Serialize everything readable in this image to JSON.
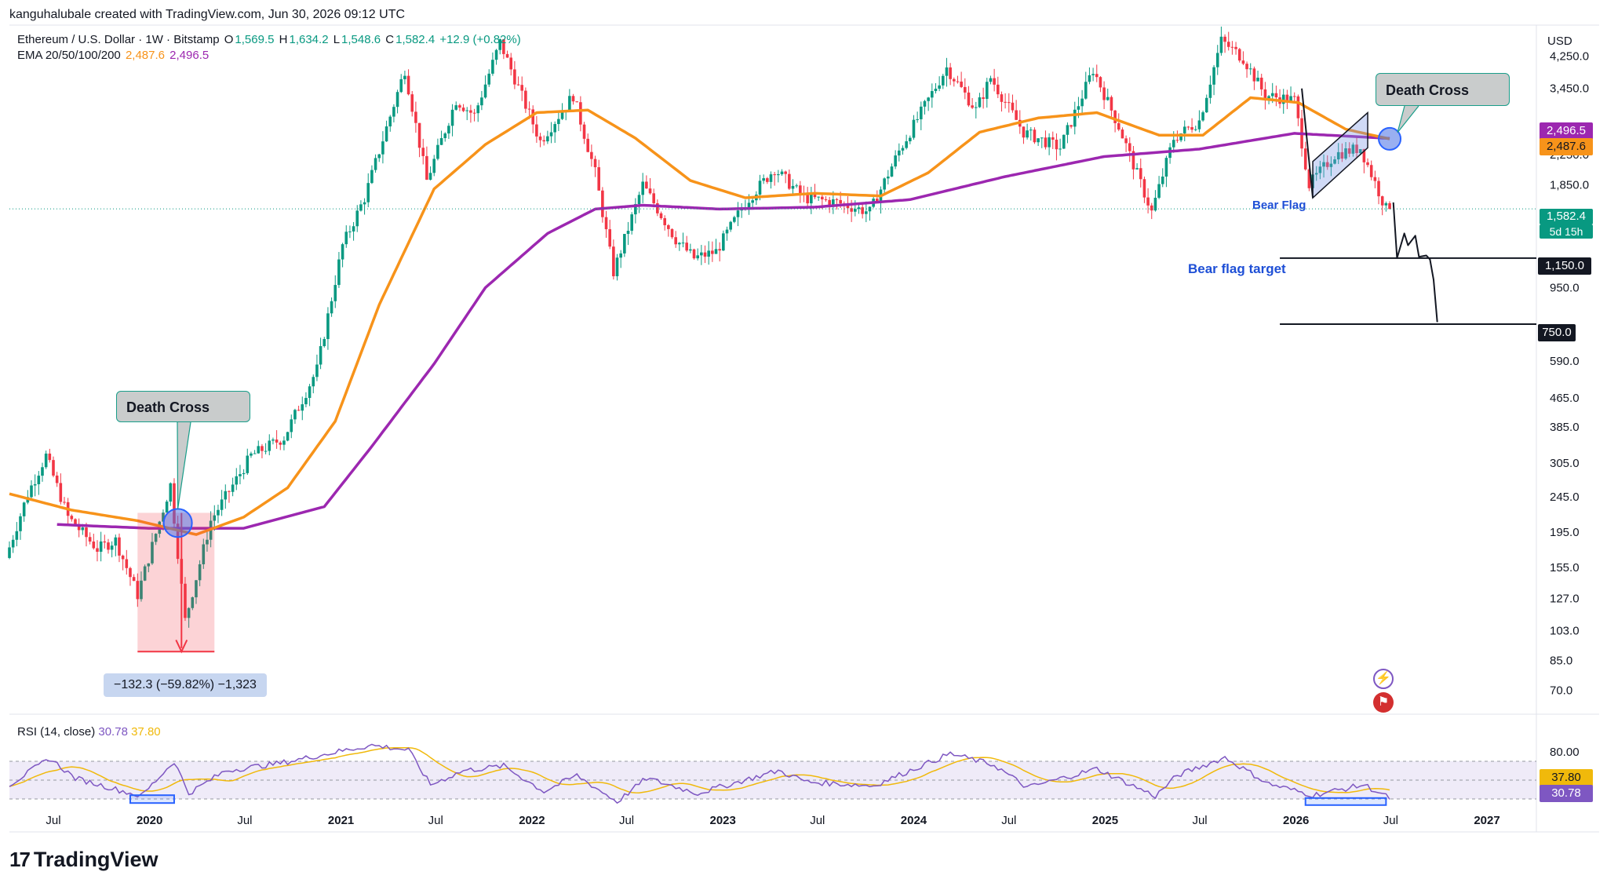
{
  "attribution": "kanguhalubale created with TradingView.com, Jun 30, 2026 09:12 UTC",
  "legend": {
    "symbol": "Ethereum / U.S. Dollar · 1W · Bitstamp",
    "open_label": "O",
    "open": "1,569.5",
    "high_label": "H",
    "high": "1,634.2",
    "low_label": "L",
    "low": "1,548.6",
    "close_label": "C",
    "close": "1,582.4",
    "change": "+12.9 (+0.82%)",
    "ema_label": "EMA 20/50/100/200",
    "ema_50": "2,487.6",
    "ema_200": "2,496.5"
  },
  "rsi_legend": {
    "label": "RSI (14, close)",
    "rsi": "30.78",
    "ma": "37.80"
  },
  "currency": "USD",
  "price_axis": [
    {
      "v": 4250,
      "t": "4,250.0"
    },
    {
      "v": 3450,
      "t": "3,450.0"
    },
    {
      "v": 2250,
      "t": "2,250.0"
    },
    {
      "v": 1850,
      "t": "1,850.0"
    },
    {
      "v": 950,
      "t": "950.0"
    },
    {
      "v": 590,
      "t": "590.0"
    },
    {
      "v": 465,
      "t": "465.0"
    },
    {
      "v": 385,
      "t": "385.0"
    },
    {
      "v": 305,
      "t": "305.0"
    },
    {
      "v": 245,
      "t": "245.0"
    },
    {
      "v": 195,
      "t": "195.0"
    },
    {
      "v": 155,
      "t": "155.0"
    },
    {
      "v": 127,
      "t": "127.0"
    },
    {
      "v": 103,
      "t": "103.0"
    },
    {
      "v": 85,
      "t": "85.0"
    },
    {
      "v": 70,
      "t": "70.0"
    }
  ],
  "rsi_axis": [
    {
      "v": 80,
      "t": "80.00"
    }
  ],
  "time_axis": [
    {
      "t": "Jul",
      "d": "2019-07-01",
      "bold": false
    },
    {
      "t": "2020",
      "d": "2020-01-01",
      "bold": true
    },
    {
      "t": "Jul",
      "d": "2020-07-01",
      "bold": false
    },
    {
      "t": "2021",
      "d": "2021-01-01",
      "bold": true
    },
    {
      "t": "Jul",
      "d": "2021-07-01",
      "bold": false
    },
    {
      "t": "2022",
      "d": "2022-01-01",
      "bold": true
    },
    {
      "t": "Jul",
      "d": "2022-07-01",
      "bold": false
    },
    {
      "t": "2023",
      "d": "2023-01-01",
      "bold": true
    },
    {
      "t": "Jul",
      "d": "2023-07-01",
      "bold": false
    },
    {
      "t": "2024",
      "d": "2024-01-01",
      "bold": true
    },
    {
      "t": "Jul",
      "d": "2024-07-01",
      "bold": false
    },
    {
      "t": "2025",
      "d": "2025-01-01",
      "bold": true
    },
    {
      "t": "Jul",
      "d": "2025-07-01",
      "bold": false
    },
    {
      "t": "2026",
      "d": "2026-01-01",
      "bold": true
    },
    {
      "t": "Jul",
      "d": "2026-07-01",
      "bold": false
    },
    {
      "t": "2027",
      "d": "2027-01-01",
      "bold": true
    }
  ],
  "price_tags": {
    "ema200": "2,496.5",
    "ema50": "2,487.6",
    "last": "1,582.4",
    "countdown": "5d 15h",
    "target1": "1,150.0",
    "target2": "750.0"
  },
  "annotations": {
    "death_cross_1": "Death Cross",
    "death_cross_2": "Death Cross",
    "bear_flag": "Bear Flag",
    "bear_flag_target": "Bear flag target",
    "measure": "−132.3 (−59.82%) −1,323"
  },
  "colors": {
    "up": "#089981",
    "down": "#f23645",
    "ema50": "#f7931a",
    "ema200": "#9c27b0",
    "rsi": "#7e57c2",
    "rsi_ma": "#f0b90b",
    "annotation_blue": "#1e4fd6"
  },
  "brand": "TradingView",
  "chart_data": {
    "type": "candlestick",
    "title": "Ethereum / U.S. Dollar · 1W · Bitstamp",
    "log_scale": true,
    "ylim": [
      60,
      5200
    ],
    "x_range": [
      "2019-04-08",
      "2027-04-01"
    ],
    "anchors": [
      [
        "2019-04-08",
        165
      ],
      [
        "2019-05-20",
        250
      ],
      [
        "2019-06-24",
        320
      ],
      [
        "2019-08-05",
        215
      ],
      [
        "2019-09-30",
        175
      ],
      [
        "2019-11-04",
        185
      ],
      [
        "2019-12-16",
        130
      ],
      [
        "2020-02-17",
        265
      ],
      [
        "2020-03-16",
        110
      ],
      [
        "2020-05-04",
        210
      ],
      [
        "2020-07-20",
        320
      ],
      [
        "2020-09-21",
        360
      ],
      [
        "2020-11-23",
        560
      ],
      [
        "2021-01-11",
        1250
      ],
      [
        "2021-02-22",
        1700
      ],
      [
        "2021-05-10",
        3900
      ],
      [
        "2021-06-21",
        1900
      ],
      [
        "2021-08-16",
        3200
      ],
      [
        "2021-09-20",
        2900
      ],
      [
        "2021-11-08",
        4650
      ],
      [
        "2022-01-24",
        2450
      ],
      [
        "2022-03-28",
        3300
      ],
      [
        "2022-05-09",
        2000
      ],
      [
        "2022-06-13",
        1050
      ],
      [
        "2022-08-08",
        1850
      ],
      [
        "2022-10-10",
        1300
      ],
      [
        "2022-11-14",
        1150
      ],
      [
        "2022-12-26",
        1200
      ],
      [
        "2023-02-20",
        1650
      ],
      [
        "2023-04-17",
        2050
      ],
      [
        "2023-06-12",
        1700
      ],
      [
        "2023-08-14",
        1650
      ],
      [
        "2023-10-16",
        1550
      ],
      [
        "2023-12-11",
        2300
      ],
      [
        "2024-03-11",
        3950
      ],
      [
        "2024-05-06",
        3000
      ],
      [
        "2024-06-03",
        3700
      ],
      [
        "2024-08-05",
        2600
      ],
      [
        "2024-10-14",
        2350
      ],
      [
        "2024-12-16",
        3900
      ],
      [
        "2025-02-03",
        2700
      ],
      [
        "2025-04-07",
        1550
      ],
      [
        "2025-05-19",
        2500
      ],
      [
        "2025-07-07",
        2800
      ],
      [
        "2025-08-18",
        4700
      ],
      [
        "2025-09-29",
        4200
      ],
      [
        "2025-11-10",
        3300
      ],
      [
        "2026-01-05",
        3200
      ],
      [
        "2026-02-02",
        1850
      ],
      [
        "2026-03-23",
        2250
      ],
      [
        "2026-05-11",
        2350
      ],
      [
        "2026-06-29",
        1582
      ]
    ],
    "ema50_anchors": [
      [
        "2019-04-08",
        250
      ],
      [
        "2019-08-05",
        225
      ],
      [
        "2019-12-09",
        210
      ],
      [
        "2020-03-30",
        192
      ],
      [
        "2020-06-29",
        215
      ],
      [
        "2020-09-21",
        260
      ],
      [
        "2020-12-21",
        400
      ],
      [
        "2021-03-15",
        850
      ],
      [
        "2021-06-28",
        1800
      ],
      [
        "2021-10-04",
        2400
      ],
      [
        "2022-01-10",
        2950
      ],
      [
        "2022-04-18",
        3000
      ],
      [
        "2022-07-18",
        2500
      ],
      [
        "2022-10-31",
        1900
      ],
      [
        "2023-02-13",
        1700
      ],
      [
        "2023-06-26",
        1750
      ],
      [
        "2023-10-30",
        1720
      ],
      [
        "2024-01-29",
        2000
      ],
      [
        "2024-05-06",
        2600
      ],
      [
        "2024-08-26",
        2850
      ],
      [
        "2024-12-16",
        2950
      ],
      [
        "2025-04-14",
        2550
      ],
      [
        "2025-07-07",
        2550
      ],
      [
        "2025-10-06",
        3250
      ],
      [
        "2026-01-05",
        3150
      ],
      [
        "2026-04-06",
        2650
      ],
      [
        "2026-06-29",
        2487.6
      ]
    ],
    "ema200_anchors": [
      [
        "2019-07-08",
        205
      ],
      [
        "2019-12-30",
        200
      ],
      [
        "2020-06-29",
        200
      ],
      [
        "2020-11-30",
        230
      ],
      [
        "2021-03-01",
        340
      ],
      [
        "2021-06-28",
        580
      ],
      [
        "2021-10-04",
        950
      ],
      [
        "2022-01-31",
        1350
      ],
      [
        "2022-05-02",
        1580
      ],
      [
        "2022-08-01",
        1620
      ],
      [
        "2022-12-26",
        1580
      ],
      [
        "2023-06-26",
        1600
      ],
      [
        "2023-12-25",
        1680
      ],
      [
        "2024-06-24",
        1950
      ],
      [
        "2024-12-30",
        2220
      ],
      [
        "2025-06-30",
        2330
      ],
      [
        "2025-12-29",
        2580
      ],
      [
        "2026-06-29",
        2496.5
      ]
    ],
    "rsi_anchors": [
      [
        "2019-04-08",
        45
      ],
      [
        "2019-06-24",
        73
      ],
      [
        "2019-08-12",
        52
      ],
      [
        "2019-12-16",
        33
      ],
      [
        "2020-02-17",
        70
      ],
      [
        "2020-03-16",
        36
      ],
      [
        "2020-05-25",
        60
      ],
      [
        "2020-09-07",
        68
      ],
      [
        "2021-01-11",
        82
      ],
      [
        "2021-03-01",
        87
      ],
      [
        "2021-05-10",
        82
      ],
      [
        "2021-06-21",
        45
      ],
      [
        "2021-08-23",
        60
      ],
      [
        "2021-11-08",
        65
      ],
      [
        "2022-01-24",
        38
      ],
      [
        "2022-03-28",
        55
      ],
      [
        "2022-06-13",
        27
      ],
      [
        "2022-08-08",
        52
      ],
      [
        "2022-11-14",
        36
      ],
      [
        "2023-04-17",
        60
      ],
      [
        "2023-06-12",
        48
      ],
      [
        "2023-10-16",
        44
      ],
      [
        "2024-03-11",
        78
      ],
      [
        "2024-06-03",
        66
      ],
      [
        "2024-08-05",
        42
      ],
      [
        "2024-12-16",
        62
      ],
      [
        "2025-04-07",
        33
      ],
      [
        "2025-05-19",
        55
      ],
      [
        "2025-08-18",
        74
      ],
      [
        "2025-11-10",
        46
      ],
      [
        "2026-02-02",
        34
      ],
      [
        "2026-05-11",
        45
      ],
      [
        "2026-06-29",
        30.78
      ]
    ],
    "series": [
      {
        "name": "EMA 20/50/100/200",
        "values": "ema50_anchors / ema200_anchors"
      }
    ],
    "levels": [
      1150,
      750
    ],
    "rsi_ylim": [
      20,
      95
    ]
  }
}
